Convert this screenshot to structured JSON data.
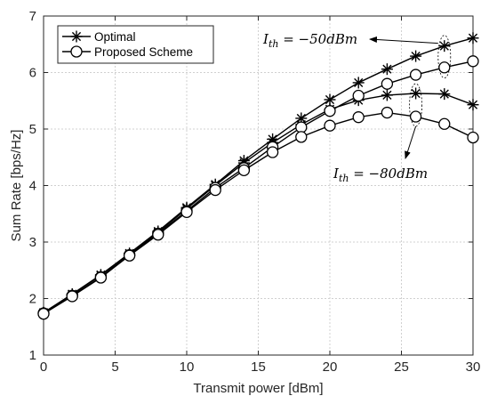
{
  "chart_data": {
    "type": "line",
    "xlabel": "Transmit power [dBm]",
    "ylabel": "Sum Rate [bps/Hz]",
    "xlim": [
      0,
      30
    ],
    "ylim": [
      1,
      7
    ],
    "xticks": [
      0,
      5,
      10,
      15,
      20,
      25,
      30
    ],
    "yticks": [
      1,
      2,
      3,
      4,
      5,
      6,
      7
    ],
    "grid": true,
    "legend_position": "top-left",
    "legend": [
      {
        "label": "Optimal",
        "marker": "asterisk"
      },
      {
        "label": "Proposed Scheme",
        "marker": "circle"
      }
    ],
    "x": [
      0,
      2,
      4,
      6,
      8,
      10,
      12,
      14,
      16,
      18,
      20,
      22,
      24,
      26,
      28,
      30
    ],
    "series": [
      {
        "group": "optimal",
        "ith": "-50dBm",
        "marker": "asterisk",
        "values": [
          1.75,
          2.08,
          2.42,
          2.8,
          3.19,
          3.61,
          4.02,
          4.44,
          4.82,
          5.19,
          5.52,
          5.82,
          6.06,
          6.29,
          6.47,
          6.61
        ]
      },
      {
        "group": "optimal",
        "ith": "-80dBm",
        "marker": "asterisk",
        "values": [
          1.75,
          2.07,
          2.41,
          2.78,
          3.17,
          3.59,
          4.0,
          4.4,
          4.76,
          5.08,
          5.35,
          5.51,
          5.6,
          5.63,
          5.62,
          5.43
        ]
      },
      {
        "group": "proposed",
        "ith": "-50dBm",
        "marker": "circle",
        "values": [
          1.74,
          2.05,
          2.38,
          2.77,
          3.15,
          3.55,
          3.96,
          4.31,
          4.68,
          5.03,
          5.32,
          5.59,
          5.8,
          5.96,
          6.09,
          6.2
        ]
      },
      {
        "group": "proposed",
        "ith": "-80dBm",
        "marker": "circle",
        "values": [
          1.73,
          2.04,
          2.37,
          2.76,
          3.13,
          3.53,
          3.92,
          4.27,
          4.59,
          4.86,
          5.06,
          5.21,
          5.29,
          5.22,
          5.09,
          4.85
        ]
      }
    ],
    "annotations": [
      {
        "base": "I",
        "sub": "th",
        "text": " = −50dBm",
        "points_to": {
          "x": 28,
          "y": 6.5
        }
      },
      {
        "base": "I",
        "sub": "th",
        "text": " = −80dBm",
        "points_to": {
          "x": 26,
          "y": 5.5
        }
      }
    ]
  }
}
